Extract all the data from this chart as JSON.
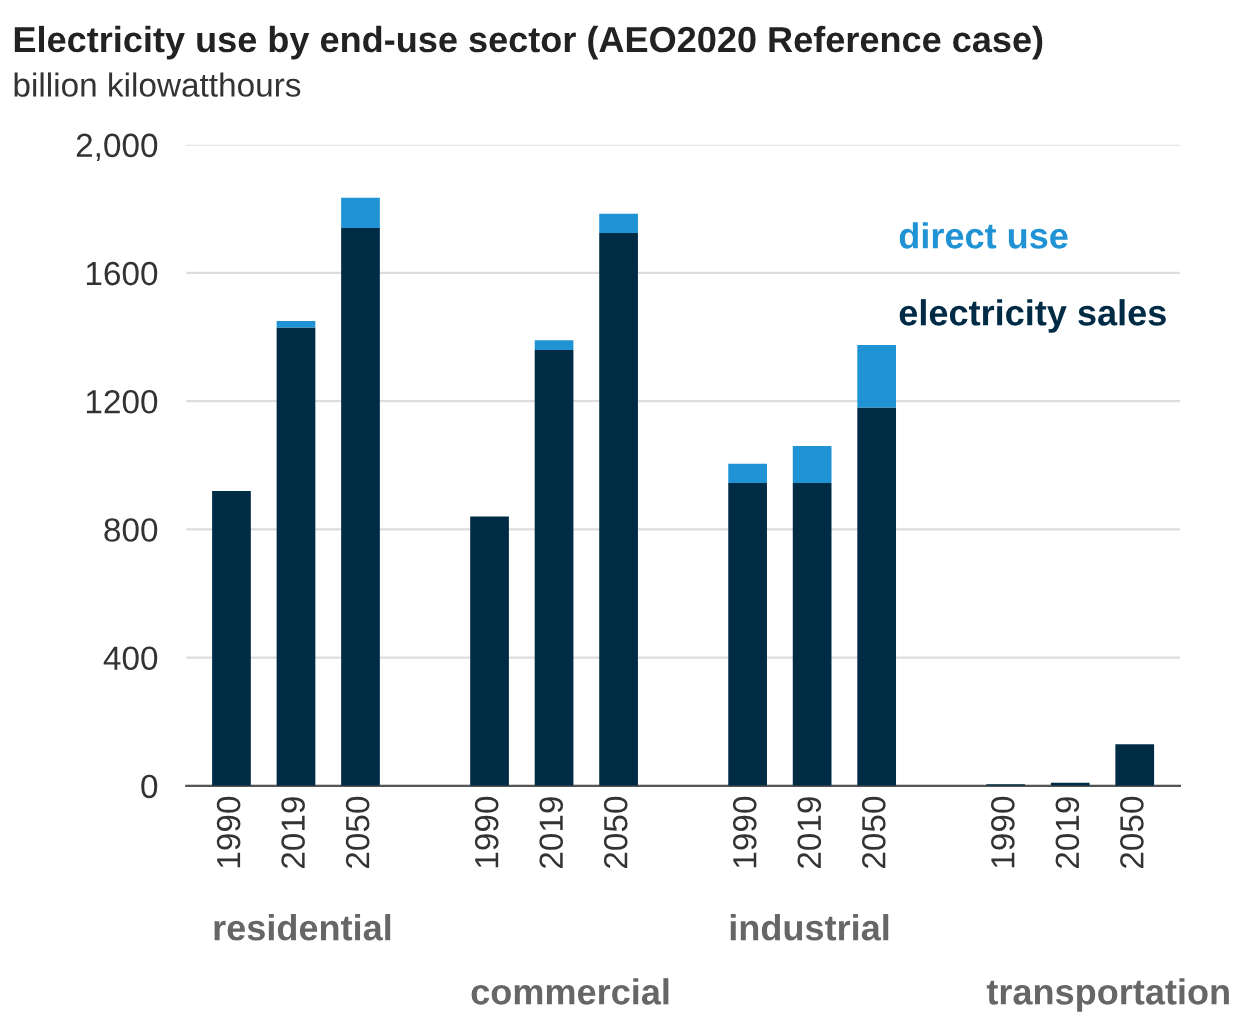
{
  "chart_data": {
    "type": "bar",
    "title": "Electricity use by end-use sector (AEO2020 Reference case)",
    "subtitle": "billion kilowatthours",
    "categories": [
      "1990",
      "2019",
      "2050",
      null,
      "1990",
      "2019",
      "2050",
      null,
      "1990",
      "2019",
      "2050",
      null,
      "1990",
      "2019",
      "2050"
    ],
    "stacked": true,
    "series": [
      {
        "name": "electricity sales",
        "color": "#002b45",
        "values": [
          920,
          1430,
          1740,
          null,
          840,
          1360,
          1725,
          null,
          945,
          945,
          1180,
          null,
          5,
          10,
          130
        ]
      },
      {
        "name": "direct use",
        "color": "#1f93d4",
        "values": [
          0,
          20,
          95,
          null,
          0,
          30,
          60,
          null,
          60,
          115,
          195,
          null,
          0,
          0,
          0
        ]
      }
    ],
    "ylim": [
      0,
      2000
    ],
    "yticks": [
      0,
      400,
      800,
      1200,
      1600,
      {
        "value": 2000,
        "label": "2,000"
      }
    ],
    "grid": "y",
    "legend": "top right",
    "annotations": [
      "residential",
      "commercial",
      "industrial",
      "transportation"
    ]
  }
}
